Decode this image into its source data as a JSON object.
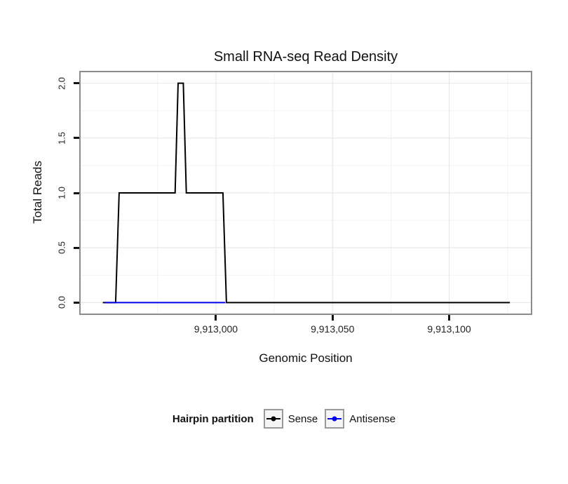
{
  "chart_data": {
    "type": "line",
    "title": "Small RNA-seq Read Density",
    "xlabel": "Genomic Position",
    "ylabel": "Total Reads",
    "xlim": [
      9912942,
      9913135
    ],
    "ylim": [
      -0.1,
      2.1
    ],
    "grid": true,
    "legend_position": "bottom",
    "x_ticks": [
      {
        "value": 9913000,
        "label": "9,913,000"
      },
      {
        "value": 9913050,
        "label": "9,913,050"
      },
      {
        "value": 9913100,
        "label": "9,913,100"
      }
    ],
    "y_ticks": [
      {
        "value": 0.0,
        "label": "0.0"
      },
      {
        "value": 0.5,
        "label": "0.5"
      },
      {
        "value": 1.0,
        "label": "1.0"
      },
      {
        "value": 1.5,
        "label": "1.5"
      },
      {
        "value": 2.0,
        "label": "2.0"
      }
    ],
    "series": [
      {
        "name": "Sense",
        "color": "#000000",
        "points": [
          [
            9912951.5,
            0
          ],
          [
            9912957.0,
            0
          ],
          [
            9912958.5,
            1
          ],
          [
            9912982.5,
            1
          ],
          [
            9912983.8,
            2
          ],
          [
            9912986.0,
            2
          ],
          [
            9912987.3,
            1
          ],
          [
            9913003.0,
            1
          ],
          [
            9913004.5,
            0
          ],
          [
            9913126.0,
            0
          ]
        ]
      },
      {
        "name": "Antisense",
        "color": "#0000ee",
        "points": [
          [
            9912952.5,
            0
          ],
          [
            9913004.0,
            0
          ]
        ]
      }
    ]
  },
  "legend": {
    "title": "Hairpin partition",
    "items": [
      {
        "label": "Sense",
        "color": "#000000"
      },
      {
        "label": "Antisense",
        "color": "#0000ee"
      }
    ]
  }
}
